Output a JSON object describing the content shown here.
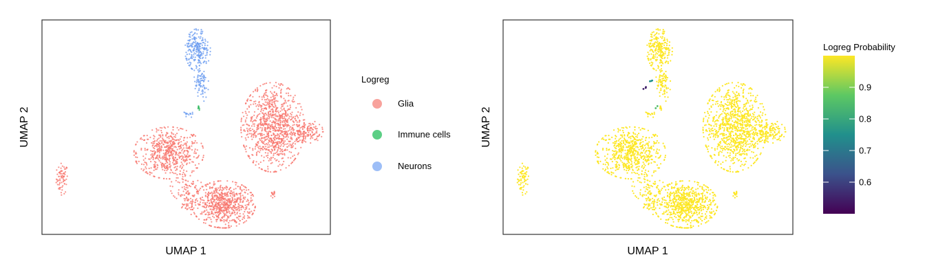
{
  "chart_data": [
    {
      "type": "scatter",
      "title": "",
      "xlabel": "UMAP 1",
      "ylabel": "UMAP 2",
      "grid": false,
      "legend": {
        "title": "Logreg",
        "placement": "right",
        "entries": [
          {
            "label": "Glia",
            "color": "#F8766D"
          },
          {
            "label": "Immune cells",
            "color": "#2EB85C"
          },
          {
            "label": "Neurons",
            "color": "#6C9CF0"
          }
        ]
      },
      "series": [
        {
          "name": "Glia",
          "color": "#F8766D",
          "clusters": [
            {
              "cx": 0.07,
              "cy": 0.26,
              "rx": 0.02,
              "ry": 0.07,
              "n": 70
            },
            {
              "cx": 0.44,
              "cy": 0.38,
              "rx": 0.11,
              "ry": 0.11,
              "n": 600
            },
            {
              "cx": 0.5,
              "cy": 0.22,
              "rx": 0.05,
              "ry": 0.06,
              "n": 70
            },
            {
              "cx": 0.5,
              "cy": 0.14,
              "rx": 0.03,
              "ry": 0.05,
              "n": 40
            },
            {
              "cx": 0.63,
              "cy": 0.14,
              "rx": 0.1,
              "ry": 0.1,
              "n": 700
            },
            {
              "cx": 0.8,
              "cy": 0.5,
              "rx": 0.1,
              "ry": 0.19,
              "n": 1000
            },
            {
              "cx": 0.92,
              "cy": 0.48,
              "rx": 0.05,
              "ry": 0.05,
              "n": 120
            },
            {
              "cx": 0.8,
              "cy": 0.19,
              "rx": 0.008,
              "ry": 0.02,
              "n": 15
            }
          ]
        },
        {
          "name": "Immune cells",
          "color": "#2EB85C",
          "clusters": [
            {
              "cx": 0.543,
              "cy": 0.59,
              "rx": 0.006,
              "ry": 0.014,
              "n": 8
            }
          ]
        },
        {
          "name": "Neurons",
          "color": "#6C9CF0",
          "clusters": [
            {
              "cx": 0.54,
              "cy": 0.86,
              "rx": 0.04,
              "ry": 0.09,
              "n": 230
            },
            {
              "cx": 0.55,
              "cy": 0.7,
              "rx": 0.025,
              "ry": 0.08,
              "n": 80
            },
            {
              "cx": 0.51,
              "cy": 0.56,
              "rx": 0.02,
              "ry": 0.015,
              "n": 15
            }
          ]
        }
      ]
    },
    {
      "type": "scatter",
      "title": "",
      "xlabel": "UMAP 1",
      "ylabel": "UMAP 2",
      "grid": false,
      "colorbar": {
        "title": "Logreg Probability",
        "placement": "right",
        "min": 0.5,
        "max": 1.0,
        "ticks": [
          0.6,
          0.7,
          0.8,
          0.9
        ],
        "tick_labels": [
          "0.6",
          "0.7",
          "0.8",
          "0.9"
        ],
        "colormap": [
          "#440154",
          "#3B528B",
          "#21908C",
          "#5DC863",
          "#FDE725"
        ]
      },
      "points_note": "Same embedding; nearly all cells at probability ≈ 1.0",
      "low_probability_cells": [
        {
          "cx": 0.49,
          "cy": 0.69,
          "value": 0.55,
          "n": 3
        },
        {
          "cx": 0.51,
          "cy": 0.72,
          "value": 0.75,
          "n": 3
        },
        {
          "cx": 0.53,
          "cy": 0.6,
          "value": 0.85,
          "n": 2
        }
      ]
    }
  ]
}
